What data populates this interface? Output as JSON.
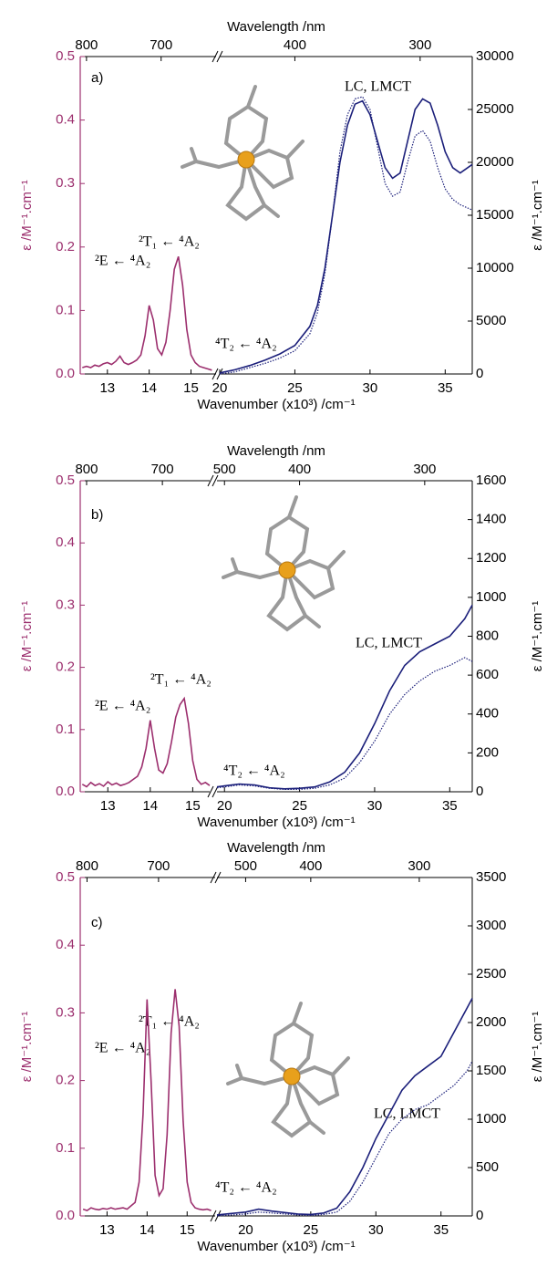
{
  "chart_data": [
    {
      "type": "line",
      "panel_label": "a)",
      "xlabel": "Wavenumber (x10³) /cm⁻¹",
      "x2label": "Wavelength /nm",
      "ylabel": "ε /M⁻¹.cm⁻¹",
      "y2label": "ε /M⁻¹.cm⁻¹",
      "segments": [
        {
          "xlim": [
            12.35,
            15.6
          ],
          "xticks": [
            13,
            14,
            15
          ]
        },
        {
          "xlim": [
            20,
            36.8
          ],
          "xticks": [
            20,
            25,
            30,
            35
          ]
        }
      ],
      "x2ticks": [
        800,
        700,
        400,
        300
      ],
      "ylim": [
        0,
        0.5
      ],
      "yticks": [
        {
          "value": 0,
          "label": "0.0"
        },
        0.1,
        0.2,
        0.3,
        0.4,
        0.5
      ],
      "y2lim": [
        0,
        30000
      ],
      "y2ticks": [
        0,
        5000,
        10000,
        15000,
        20000,
        25000,
        30000
      ],
      "annotations": [
        "LC, LMCT",
        "²T₁ ← ⁴A₂",
        "²E ← ⁴A₂",
        "⁴T₂ ← ⁴A₂"
      ],
      "series": [
        {
          "color": "#9c2f6e",
          "segment": 0,
          "dash": "solid",
          "x": [
            12.4,
            12.5,
            12.6,
            12.7,
            12.8,
            12.9,
            13.0,
            13.1,
            13.2,
            13.3,
            13.4,
            13.5,
            13.6,
            13.7,
            13.8,
            13.9,
            14.0,
            14.1,
            14.2,
            14.3,
            14.4,
            14.5,
            14.6,
            14.7,
            14.8,
            14.9,
            15.0,
            15.1,
            15.2,
            15.3,
            15.4,
            15.5
          ],
          "values": [
            0.01,
            0.012,
            0.01,
            0.014,
            0.012,
            0.016,
            0.018,
            0.015,
            0.02,
            0.028,
            0.018,
            0.015,
            0.018,
            0.022,
            0.03,
            0.06,
            0.108,
            0.085,
            0.04,
            0.03,
            0.05,
            0.1,
            0.165,
            0.185,
            0.14,
            0.07,
            0.03,
            0.018,
            0.012,
            0.01,
            0.008,
            0.006
          ]
        },
        {
          "color": "#1b1f7a",
          "segment": 1,
          "axis": "y2",
          "dash": "solid",
          "x": [
            20,
            21,
            22,
            23,
            24,
            25,
            26,
            26.5,
            27,
            27.5,
            28,
            28.5,
            29,
            29.5,
            30,
            30.5,
            31,
            31.5,
            32,
            32.5,
            33,
            33.5,
            34,
            34.5,
            35,
            35.5,
            36,
            36.8
          ],
          "values": [
            100,
            400,
            800,
            1300,
            1900,
            2700,
            4500,
            6500,
            10000,
            15000,
            20000,
            23500,
            25500,
            25800,
            24500,
            22000,
            19500,
            18500,
            19000,
            22000,
            25000,
            26000,
            25600,
            23500,
            21000,
            19500,
            19000,
            19800
          ]
        },
        {
          "color": "#1b1f7a",
          "segment": 1,
          "axis": "y2",
          "dash": "dotted",
          "x": [
            20,
            21,
            22,
            23,
            24,
            25,
            26,
            26.5,
            27,
            27.5,
            28,
            28.5,
            29,
            29.5,
            30,
            30.5,
            31,
            31.5,
            32,
            32.5,
            33,
            33.5,
            34,
            34.5,
            35,
            35.5,
            36,
            36.8
          ],
          "values": [
            0,
            200,
            600,
            1000,
            1500,
            2200,
            3800,
            5800,
            9500,
            15000,
            21000,
            24500,
            26000,
            26200,
            25000,
            21500,
            18000,
            16800,
            17200,
            20000,
            22500,
            23000,
            22000,
            19500,
            17500,
            16500,
            16000,
            15500
          ]
        }
      ]
    },
    {
      "type": "line",
      "panel_label": "b)",
      "xlabel": "Wavenumber (x10³) /cm⁻¹",
      "x2label": "Wavelength /nm",
      "ylabel": "ε /M⁻¹.cm⁻¹",
      "y2label": "ε /M⁻¹.cm⁻¹",
      "segments": [
        {
          "xlim": [
            12.35,
            15.4
          ],
          "xticks": [
            13,
            14,
            15
          ]
        },
        {
          "xlim": [
            19.5,
            36.5
          ],
          "xticks": [
            20,
            25,
            30,
            35
          ]
        }
      ],
      "x2ticks": [
        800,
        700,
        500,
        400,
        300
      ],
      "ylim": [
        0,
        0.5
      ],
      "yticks": [
        {
          "value": 0,
          "label": "0.0"
        },
        0.1,
        0.2,
        0.3,
        0.4,
        0.5
      ],
      "y2lim": [
        0,
        1600
      ],
      "y2ticks": [
        0,
        200,
        400,
        600,
        800,
        1000,
        1200,
        1400,
        1600
      ],
      "annotations": [
        "LC, LMCT",
        "²T₁ ← ⁴A₂",
        "²E ← ⁴A₂",
        "⁴T₂ ← ⁴A₂"
      ],
      "series": [
        {
          "color": "#9c2f6e",
          "segment": 0,
          "dash": "solid",
          "x": [
            12.4,
            12.5,
            12.6,
            12.7,
            12.8,
            12.9,
            13.0,
            13.1,
            13.2,
            13.3,
            13.4,
            13.5,
            13.6,
            13.7,
            13.8,
            13.9,
            14.0,
            14.1,
            14.2,
            14.3,
            14.4,
            14.5,
            14.6,
            14.7,
            14.8,
            14.9,
            15.0,
            15.1,
            15.2,
            15.3,
            15.4
          ],
          "values": [
            0.012,
            0.008,
            0.015,
            0.01,
            0.013,
            0.009,
            0.016,
            0.011,
            0.014,
            0.01,
            0.012,
            0.015,
            0.02,
            0.025,
            0.04,
            0.07,
            0.115,
            0.07,
            0.035,
            0.03,
            0.045,
            0.08,
            0.12,
            0.14,
            0.15,
            0.11,
            0.05,
            0.02,
            0.012,
            0.015,
            0.01
          ]
        },
        {
          "color": "#1b1f7a",
          "segment": 1,
          "axis": "y2",
          "dash": "solid",
          "x": [
            19.5,
            20,
            21,
            22,
            23,
            24,
            25,
            26,
            27,
            28,
            29,
            30,
            31,
            32,
            33,
            34,
            35,
            36,
            36.5
          ],
          "values": [
            25,
            30,
            40,
            35,
            20,
            15,
            18,
            25,
            50,
            100,
            200,
            350,
            520,
            650,
            720,
            760,
            800,
            890,
            960
          ]
        },
        {
          "color": "#1b1f7a",
          "segment": 1,
          "axis": "y2",
          "dash": "dotted",
          "x": [
            19.5,
            20,
            21,
            22,
            23,
            24,
            25,
            26,
            27,
            28,
            29,
            30,
            31,
            32,
            33,
            34,
            35,
            36,
            36.5
          ],
          "values": [
            20,
            25,
            35,
            30,
            18,
            12,
            12,
            18,
            35,
            70,
            150,
            260,
            400,
            500,
            570,
            620,
            650,
            690,
            670
          ]
        }
      ]
    },
    {
      "type": "line",
      "panel_label": "c)",
      "xlabel": "Wavenumber (x10³) /cm⁻¹",
      "x2label": "Wavelength /nm",
      "ylabel": "ε /M⁻¹.cm⁻¹",
      "y2label": "ε /M⁻¹.cm⁻¹",
      "segments": [
        {
          "xlim": [
            12.33,
            15.7
          ],
          "xticks": [
            13,
            14,
            15
          ]
        },
        {
          "xlim": [
            17.8,
            37.4
          ],
          "xticks": [
            20,
            25,
            30,
            35
          ]
        }
      ],
      "x2ticks": [
        800,
        700,
        500,
        400,
        300
      ],
      "ylim": [
        0,
        0.5
      ],
      "yticks": [
        {
          "value": 0,
          "label": "0.0"
        },
        0.1,
        0.2,
        0.3,
        0.4,
        0.5
      ],
      "y2lim": [
        0,
        3500
      ],
      "y2ticks": [
        0,
        500,
        1000,
        1500,
        2000,
        2500,
        3000,
        3500
      ],
      "annotations": [
        "LC, LMCT",
        "²T₁ ← ⁴A₂",
        "²E ← ⁴A₂",
        "⁴T₂ ← ⁴A₂"
      ],
      "series": [
        {
          "color": "#9c2f6e",
          "segment": 0,
          "dash": "solid",
          "x": [
            12.4,
            12.5,
            12.6,
            12.7,
            12.8,
            12.9,
            13.0,
            13.1,
            13.2,
            13.3,
            13.4,
            13.5,
            13.6,
            13.7,
            13.8,
            13.9,
            14.0,
            14.1,
            14.2,
            14.3,
            14.4,
            14.5,
            14.6,
            14.7,
            14.8,
            14.9,
            15.0,
            15.1,
            15.2,
            15.3,
            15.4,
            15.5,
            15.6
          ],
          "values": [
            0.01,
            0.008,
            0.012,
            0.01,
            0.009,
            0.011,
            0.01,
            0.012,
            0.01,
            0.011,
            0.012,
            0.01,
            0.015,
            0.02,
            0.05,
            0.15,
            0.32,
            0.2,
            0.06,
            0.03,
            0.04,
            0.12,
            0.27,
            0.335,
            0.28,
            0.14,
            0.05,
            0.02,
            0.012,
            0.01,
            0.009,
            0.01,
            0.008
          ]
        },
        {
          "color": "#1b1f7a",
          "segment": 1,
          "axis": "y2",
          "dash": "solid",
          "x": [
            17.8,
            20,
            21,
            22,
            24,
            25,
            26,
            27,
            28,
            29,
            30,
            31,
            32,
            33,
            34,
            35,
            36,
            37,
            37.4
          ],
          "values": [
            10,
            40,
            70,
            50,
            20,
            15,
            30,
            80,
            250,
            500,
            800,
            1050,
            1300,
            1450,
            1550,
            1650,
            1900,
            2150,
            2250
          ]
        },
        {
          "color": "#1b1f7a",
          "segment": 1,
          "axis": "y2",
          "dash": "dotted",
          "x": [
            17.8,
            20,
            21,
            22,
            24,
            25,
            26,
            27,
            28,
            29,
            30,
            31,
            32,
            33,
            34,
            35,
            36,
            37,
            37.4
          ],
          "values": [
            0,
            20,
            40,
            30,
            10,
            5,
            15,
            40,
            150,
            350,
            600,
            850,
            1000,
            1100,
            1150,
            1250,
            1350,
            1500,
            1600
          ]
        }
      ]
    }
  ]
}
